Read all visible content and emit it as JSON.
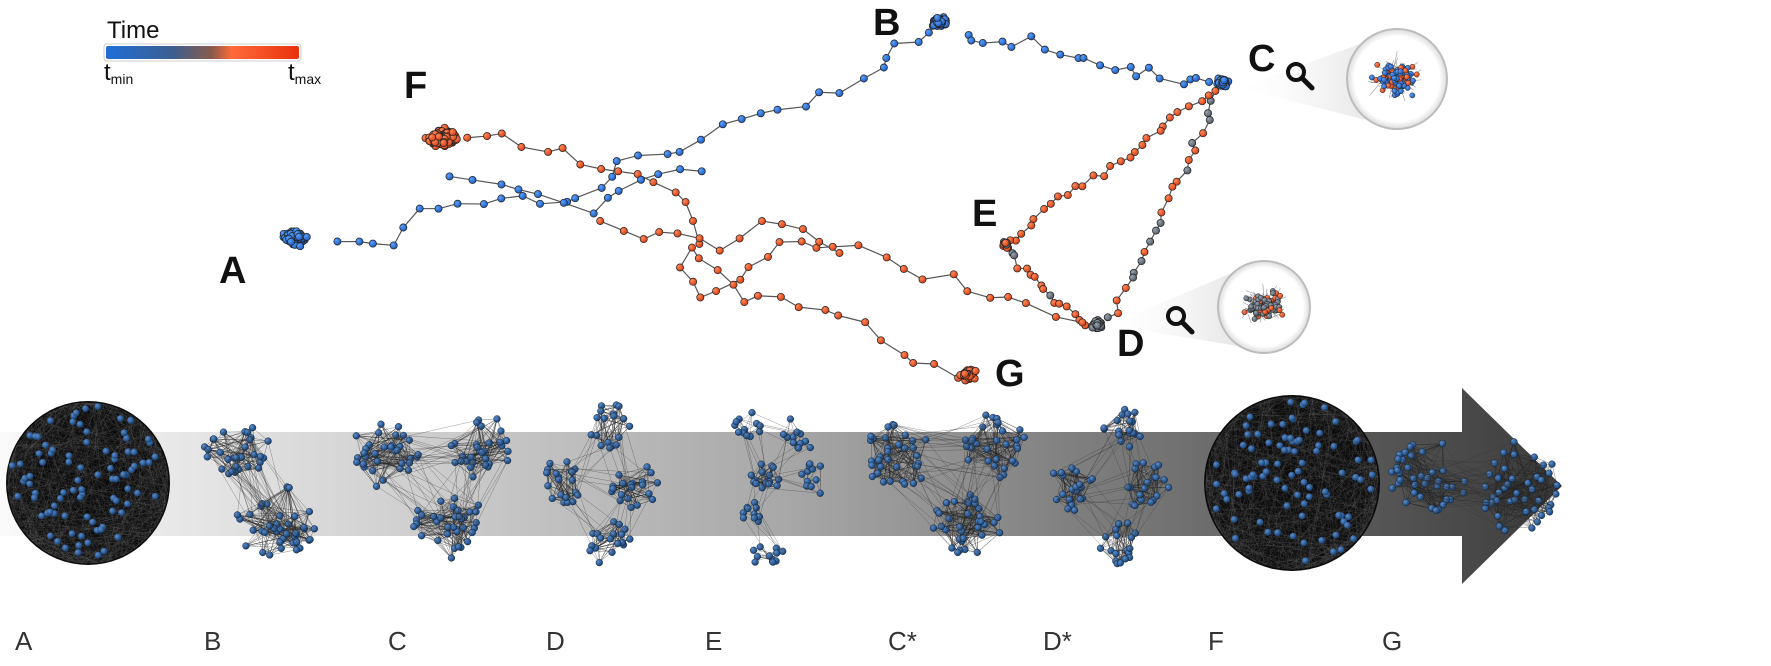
{
  "legend": {
    "title": "Time",
    "tmin_base": "t",
    "tmin_sub": "min",
    "tmax_base": "t",
    "tmax_sub": "max",
    "colors": {
      "start": "#1e6fd9",
      "mid": "#5a6a7a",
      "end": "#e8481c"
    }
  },
  "trajectory_labels": {
    "A": "A",
    "B": "B",
    "C": "C",
    "D": "D",
    "E": "E",
    "F": "F",
    "G": "G"
  },
  "magnifier_icons": [
    "magnifier-icon-c",
    "magnifier-icon-d"
  ],
  "stages": [
    {
      "id": "A",
      "label": "A",
      "kind": "sphere"
    },
    {
      "id": "B",
      "label": "B",
      "kind": "two"
    },
    {
      "id": "C",
      "label": "C",
      "kind": "three"
    },
    {
      "id": "D",
      "label": "D",
      "kind": "four"
    },
    {
      "id": "E",
      "label": "E",
      "kind": "chain"
    },
    {
      "id": "Cs",
      "label": "C*",
      "kind": "three"
    },
    {
      "id": "Ds",
      "label": "D*",
      "kind": "four"
    },
    {
      "id": "F",
      "label": "F",
      "kind": "sphere"
    },
    {
      "id": "G",
      "label": "G",
      "kind": "two-side"
    }
  ],
  "colors": {
    "node_blue": "#1f67c9",
    "node_orange": "#e4471b",
    "node_gray": "#6b7480",
    "edge": "#555555",
    "stage_node": "#1d4f86",
    "arrow_light": "#f2f2f2",
    "arrow_dark": "#4a4a4a"
  }
}
